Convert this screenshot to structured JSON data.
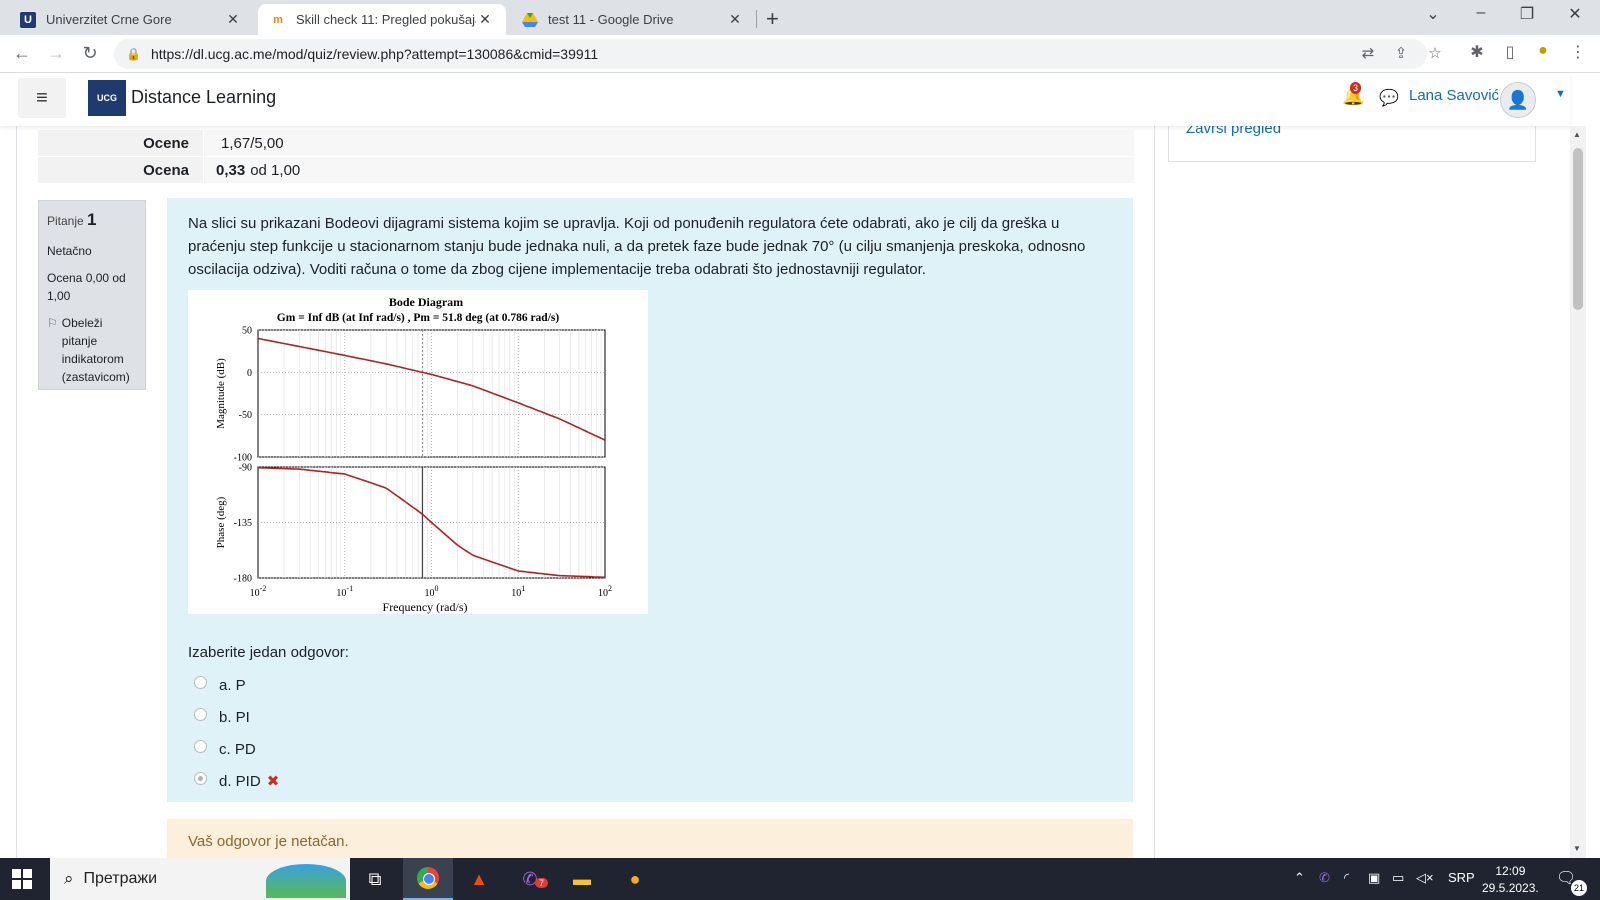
{
  "browser": {
    "tabs": [
      {
        "title": "Univerzitet Crne Gore",
        "icon": "ucg-favicon",
        "active": false
      },
      {
        "title": "Skill check 11: Pregled pokušaja",
        "icon": "moodle-favicon",
        "active": true
      },
      {
        "title": "test 11 - Google Drive",
        "icon": "google-drive-favicon",
        "active": false
      }
    ],
    "url": "https://dl.ucg.ac.me/mod/quiz/review.php?attempt=130086&cmid=39911"
  },
  "navbar": {
    "site_name": "Distance Learning",
    "logo_text": "UCG",
    "notification_count": "3",
    "user_name": "Lana Savović"
  },
  "summary": [
    {
      "label": "Ocene",
      "value": "1,67/5,00",
      "bold_part": ""
    },
    {
      "label": "Ocena",
      "value": "od 1,00",
      "bold_part": "0,33"
    }
  ],
  "block": {
    "finish_review": "Završi pregled"
  },
  "question_info": {
    "label": "Pitanje",
    "number": "1",
    "state": "Netačno",
    "grade": "Ocena 0,00 od 1,00",
    "flag_text": "Obeleži pitanje indikatorom (zastavicom)"
  },
  "question": {
    "text": "Na slici su prikazani Bodeovi dijagrami sistema kojim se upravlja. Koji od ponuđenih regulatora ćete odabrati, ako je cilj da greška u praćenju step funkcije u stacionarnom stanju bude jednaka nuli, a da pretek faze bude jednak 70° (u cilju smanjenja preskoka, odnosno oscilacija odziva). Voditi računa o tome da zbog cijene implementacije treba odabrati što jednostavniji regulator.",
    "prompt": "Izaberite jedan odgovor:",
    "options": [
      {
        "label": "a. P",
        "selected": false
      },
      {
        "label": "b. PI",
        "selected": false
      },
      {
        "label": "c. PD",
        "selected": false
      },
      {
        "label": "d. PID",
        "selected": true,
        "incorrect": true
      }
    ],
    "feedback": "Vaš odgovor je netačan."
  },
  "chart_data": {
    "type": "line",
    "title": "Bode Diagram",
    "subtitle": "Gm = Inf dB (at Inf rad/s) ,  Pm = 51.8 deg (at 0.786 rad/s)",
    "xlabel": "Frequency  (rad/s)",
    "x_scale": "log",
    "xlim": [
      0.01,
      100
    ],
    "x_ticks": [
      "10^-2",
      "10^-1",
      "10^0",
      "10^1",
      "10^2"
    ],
    "marker_x": 0.786,
    "grid": true,
    "panels": [
      {
        "ylabel": "Magnitude (dB)",
        "ylim": [
          -100,
          50
        ],
        "y_ticks": [
          "50",
          "0",
          "-50",
          "-100"
        ],
        "series": [
          {
            "x": [
              0.01,
              0.03,
              0.1,
              0.3,
              0.786,
              1,
              3,
              10,
              30,
              100
            ],
            "values": [
              40,
              30.5,
              20,
              10,
              0,
              -2.5,
              -16,
              -36,
              -55,
              -80
            ]
          }
        ]
      },
      {
        "ylabel": "Phase (deg)",
        "ylim": [
          -180,
          -90
        ],
        "y_ticks": [
          "-90",
          "-135",
          "-180"
        ],
        "series": [
          {
            "x": [
              0.01,
              0.03,
              0.1,
              0.3,
              0.786,
              1,
              2,
              3,
              10,
              30,
              100
            ],
            "values": [
              -90.6,
              -91.7,
              -95.7,
              -107,
              -128.2,
              -135,
              -153.4,
              -161.6,
              -174.3,
              -178.1,
              -179.4
            ]
          }
        ]
      }
    ]
  },
  "taskbar": {
    "search_placeholder": "Претражи",
    "viber_badge": "7",
    "language": "SRP",
    "time": "12:09",
    "date": "29.5.2023.",
    "notifications": "21"
  },
  "colors": {
    "accent": "#0f6cbf",
    "question_bg": "#def2f8",
    "feedback_bg": "#fcefdc",
    "incorrect": "#ca3120",
    "bode_curve": "#b22222"
  }
}
